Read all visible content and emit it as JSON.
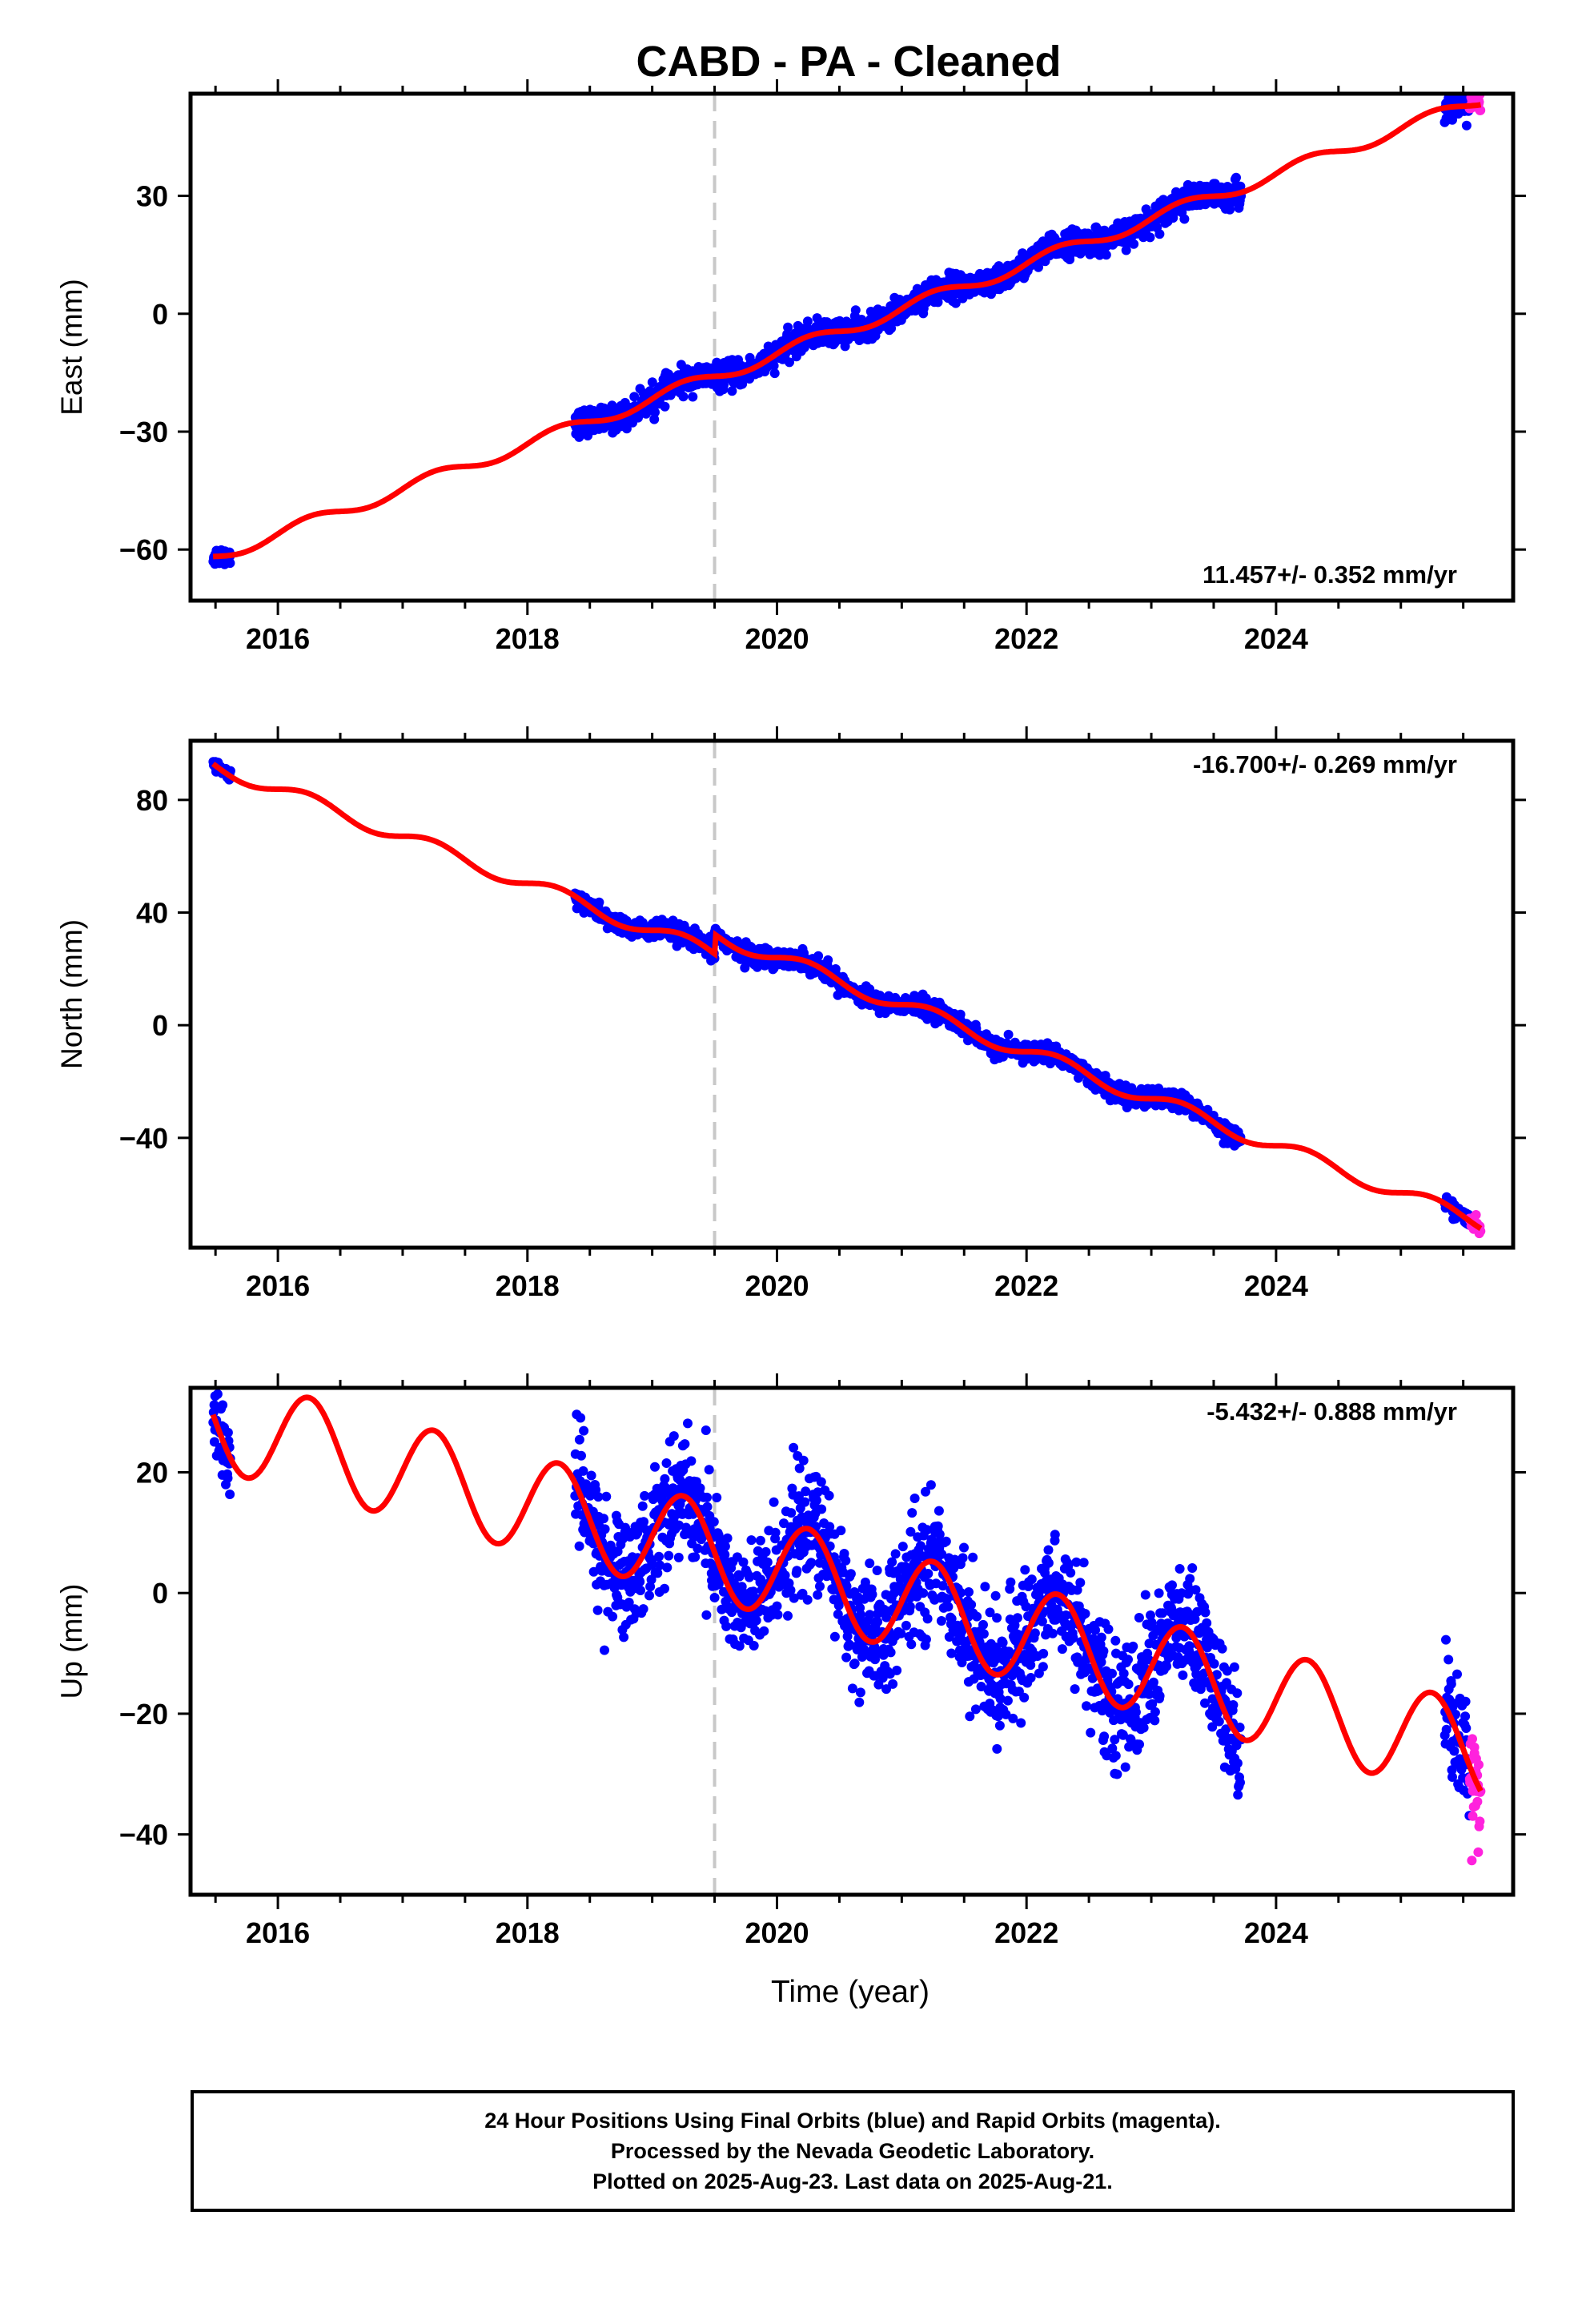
{
  "title": "CABD  - PA - Cleaned",
  "xlabel": "Time (year)",
  "colors": {
    "final_orbits": "#0000ff",
    "rapid_orbits": "#ff22dd",
    "model": "#ff0000",
    "event_line": "#c8c8c8"
  },
  "footer": {
    "line1": "24 Hour Positions Using Final Orbits (blue) and Rapid Orbits (magenta).",
    "line2": "Processed by the Nevada Geodetic Laboratory.",
    "line3": "Plotted on 2025-Aug-23. Last data on 2025-Aug-21."
  },
  "chart_data": [
    {
      "type": "scatter",
      "panel": "east",
      "ylabel": "East (mm)",
      "rate_label": "11.457+/- 0.352 mm/yr",
      "xlim": [
        2015.3,
        2025.9
      ],
      "ylim": [
        -73,
        56
      ],
      "xticks": [
        2016,
        2018,
        2020,
        2022,
        2024
      ],
      "yticks": [
        -60,
        -30,
        0,
        30
      ],
      "event_x": 2019.5,
      "model": {
        "rate": 11.457,
        "at_2020": -10.2,
        "seasonal_amp": 1.6,
        "offset_steps": []
      },
      "series": [
        {
          "name": "Final Orbits",
          "color": "#0000ff",
          "segments": [
            [
              2015.48,
              2015.62,
              1.2
            ],
            [
              2018.38,
              2023.72,
              1.6
            ],
            [
              2025.35,
              2025.55,
              2.0
            ]
          ]
        },
        {
          "name": "Rapid Orbits",
          "color": "#ff22dd",
          "segments": [
            [
              2025.55,
              2025.64,
              1.2
            ]
          ]
        }
      ]
    },
    {
      "type": "scatter",
      "panel": "north",
      "ylabel": "North (mm)",
      "rate_label": "-16.700+/- 0.269 mm/yr",
      "xlim": [
        2015.3,
        2025.9
      ],
      "ylim": [
        -79,
        101
      ],
      "xticks": [
        2016,
        2018,
        2020,
        2022,
        2024
      ],
      "yticks": [
        -40,
        0,
        40,
        80
      ],
      "event_x": 2019.5,
      "model": {
        "rate": -16.7,
        "at_2020": 17,
        "seasonal_amp": 2.6,
        "offset_steps": [
          [
            2019.5,
            7
          ]
        ]
      },
      "series": [
        {
          "name": "Final Orbits",
          "color": "#0000ff",
          "segments": [
            [
              2015.48,
              2015.62,
              1.0
            ],
            [
              2018.38,
              2023.72,
              1.6
            ],
            [
              2025.35,
              2025.55,
              1.2
            ]
          ]
        },
        {
          "name": "Rapid Orbits",
          "color": "#ff22dd",
          "segments": [
            [
              2025.55,
              2025.64,
              1.0
            ]
          ]
        }
      ]
    },
    {
      "type": "scatter",
      "panel": "up",
      "ylabel": "Up (mm)",
      "rate_label": "-5.432+/- 0.888 mm/yr",
      "xlim": [
        2015.3,
        2025.9
      ],
      "ylim": [
        -50,
        34
      ],
      "xticks": [
        2016,
        2018,
        2020,
        2022,
        2024
      ],
      "yticks": [
        -40,
        -20,
        0,
        20
      ],
      "event_x": 2019.5,
      "model": {
        "rate": -5.432,
        "at_2020": 4,
        "seasonal_amp": 8,
        "offset_steps": []
      },
      "series": [
        {
          "name": "Final Orbits",
          "color": "#0000ff",
          "segments": [
            [
              2015.48,
              2015.62,
              4.0
            ],
            [
              2018.38,
              2023.72,
              5.0
            ],
            [
              2025.35,
              2025.55,
              5.0
            ]
          ]
        },
        {
          "name": "Rapid Orbits",
          "color": "#ff22dd",
          "segments": [
            [
              2025.55,
              2025.64,
              5.0
            ]
          ]
        }
      ]
    }
  ]
}
